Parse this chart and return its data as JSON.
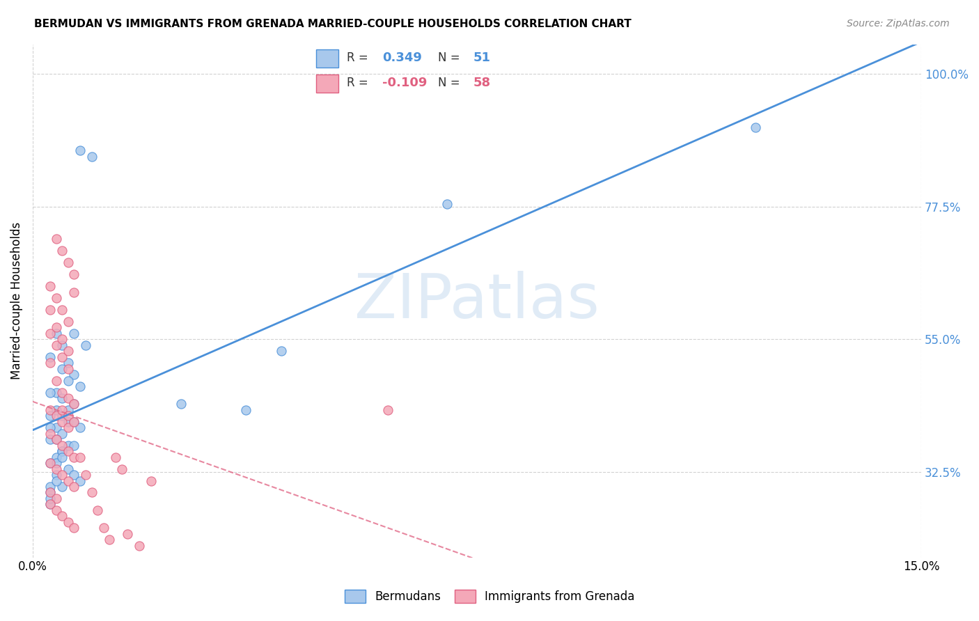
{
  "title": "BERMUDAN VS IMMIGRANTS FROM GRENADA MARRIED-COUPLE HOUSEHOLDS CORRELATION CHART",
  "source": "Source: ZipAtlas.com",
  "ylabel": "Married-couple Households",
  "ytick_labels": [
    "100.0%",
    "77.5%",
    "55.0%",
    "32.5%"
  ],
  "ytick_values": [
    1.0,
    0.775,
    0.55,
    0.325
  ],
  "xlim": [
    0.0,
    0.15
  ],
  "ylim": [
    0.18,
    1.05
  ],
  "legend_label1": "Bermudans",
  "legend_label2": "Immigrants from Grenada",
  "R1": "0.349",
  "N1": "51",
  "R2": "-0.109",
  "N2": "58",
  "color_blue": "#A8C8EC",
  "color_pink": "#F4A8B8",
  "line_blue": "#4A90D9",
  "line_pink": "#E06080",
  "blue_scatter_x": [
    0.008,
    0.01,
    0.004,
    0.007,
    0.005,
    0.003,
    0.006,
    0.009,
    0.005,
    0.007,
    0.006,
    0.008,
    0.004,
    0.003,
    0.005,
    0.007,
    0.006,
    0.004,
    0.003,
    0.005,
    0.006,
    0.007,
    0.008,
    0.004,
    0.003,
    0.005,
    0.003,
    0.004,
    0.006,
    0.007,
    0.005,
    0.004,
    0.003,
    0.006,
    0.007,
    0.008,
    0.005,
    0.036,
    0.042,
    0.07,
    0.025,
    0.003,
    0.003,
    0.004,
    0.004,
    0.005,
    0.122,
    0.003,
    0.003,
    0.004,
    0.005
  ],
  "blue_scatter_y": [
    0.87,
    0.86,
    0.56,
    0.56,
    0.54,
    0.52,
    0.51,
    0.54,
    0.5,
    0.49,
    0.48,
    0.47,
    0.46,
    0.46,
    0.45,
    0.44,
    0.43,
    0.43,
    0.42,
    0.42,
    0.41,
    0.41,
    0.4,
    0.4,
    0.4,
    0.39,
    0.38,
    0.38,
    0.37,
    0.37,
    0.36,
    0.35,
    0.34,
    0.33,
    0.32,
    0.31,
    0.3,
    0.43,
    0.53,
    0.78,
    0.44,
    0.3,
    0.29,
    0.32,
    0.31,
    0.36,
    0.91,
    0.27,
    0.28,
    0.34,
    0.35
  ],
  "pink_scatter_x": [
    0.004,
    0.005,
    0.006,
    0.007,
    0.003,
    0.004,
    0.005,
    0.006,
    0.003,
    0.004,
    0.005,
    0.006,
    0.007,
    0.003,
    0.004,
    0.005,
    0.006,
    0.003,
    0.004,
    0.005,
    0.006,
    0.007,
    0.003,
    0.004,
    0.005,
    0.006,
    0.003,
    0.004,
    0.005,
    0.006,
    0.007,
    0.003,
    0.004,
    0.005,
    0.006,
    0.007,
    0.003,
    0.004,
    0.005,
    0.006,
    0.007,
    0.003,
    0.004,
    0.005,
    0.006,
    0.007,
    0.06,
    0.008,
    0.009,
    0.01,
    0.011,
    0.012,
    0.018,
    0.016,
    0.013,
    0.014,
    0.015,
    0.02
  ],
  "pink_scatter_y": [
    0.72,
    0.7,
    0.68,
    0.66,
    0.64,
    0.62,
    0.6,
    0.58,
    0.56,
    0.54,
    0.52,
    0.5,
    0.63,
    0.6,
    0.57,
    0.55,
    0.53,
    0.51,
    0.48,
    0.46,
    0.45,
    0.44,
    0.43,
    0.42,
    0.41,
    0.4,
    0.39,
    0.38,
    0.37,
    0.36,
    0.35,
    0.34,
    0.33,
    0.32,
    0.31,
    0.3,
    0.29,
    0.28,
    0.43,
    0.42,
    0.41,
    0.27,
    0.26,
    0.25,
    0.24,
    0.23,
    0.43,
    0.35,
    0.32,
    0.29,
    0.26,
    0.23,
    0.2,
    0.22,
    0.21,
    0.35,
    0.33,
    0.31
  ]
}
